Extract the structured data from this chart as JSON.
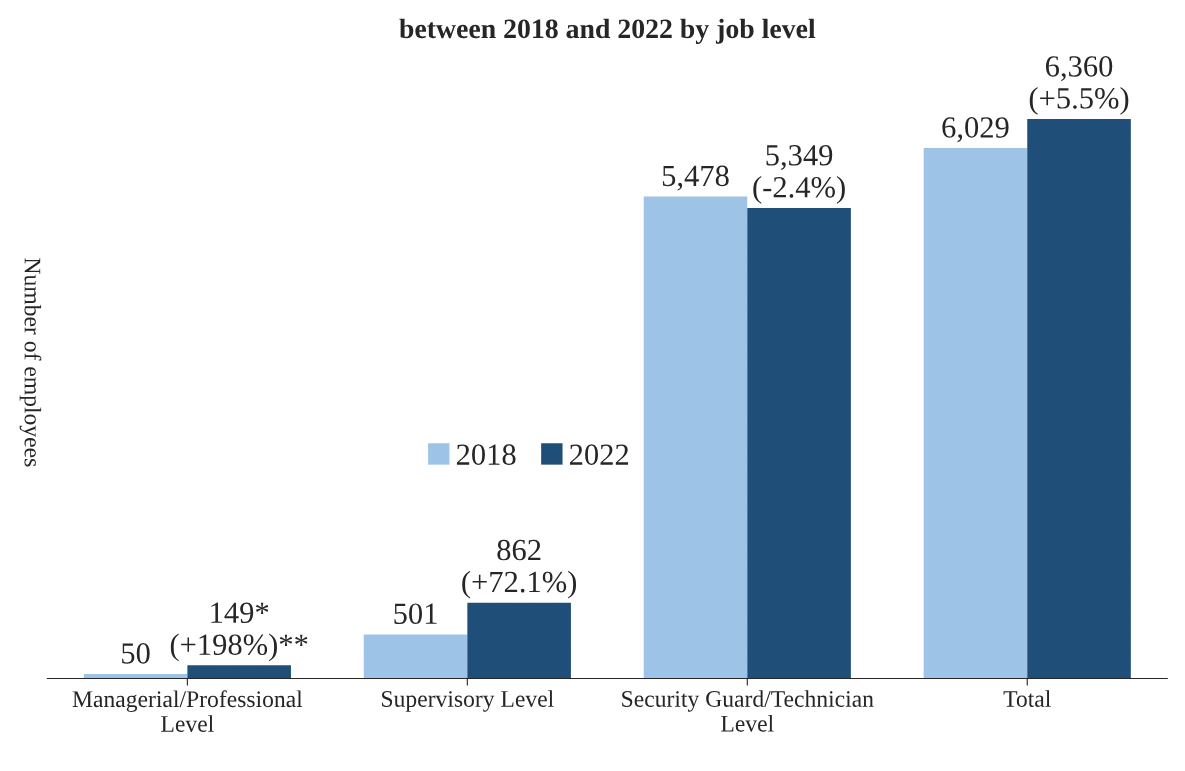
{
  "chart_data": {
    "type": "bar",
    "title": "between 2018 and 2022 by job level",
    "ylabel": "Number of employees",
    "categories": [
      "Managerial/Professional\nLevel",
      "Supervisory Level",
      "Security Guard/Technician\nLevel",
      "Total"
    ],
    "series": [
      {
        "name": "2018",
        "color": "#9dc3e6",
        "values": [
          50,
          501,
          5478,
          6029
        ],
        "value_labels": [
          "50",
          "501",
          "5,478",
          "6,029"
        ]
      },
      {
        "name": "2022",
        "color": "#1f4e79",
        "values": [
          149,
          862,
          5349,
          6360
        ],
        "value_labels": [
          "149*\n(+198%)**",
          "862\n(+72.1%)",
          "5,349\n(-2.4%)",
          "6,360\n(+5.5%)"
        ]
      }
    ],
    "legend": "center",
    "grid": false
  }
}
